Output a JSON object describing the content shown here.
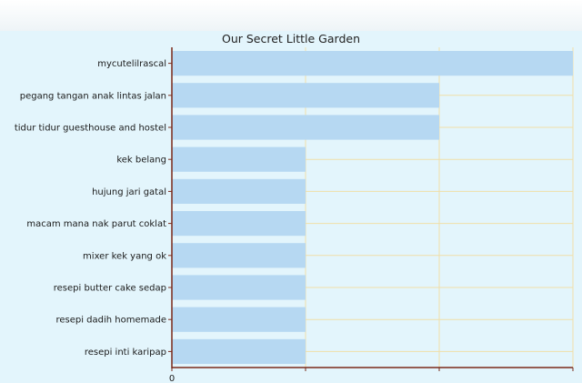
{
  "chart_data": {
    "type": "bar",
    "orientation": "horizontal",
    "title": "Our Secret Little Garden",
    "categories": [
      "mycutelilrascal",
      "pegang tangan anak lintas jalan",
      "tidur tidur guesthouse and hostel",
      "kek belang",
      "hujung jari gatal",
      "macam mana nak parut coklat",
      "mixer kek yang  ok",
      "resepi butter cake sedap",
      "resepi dadih homemade",
      "resepi inti karipap"
    ],
    "values": [
      3,
      2,
      2,
      1,
      1,
      1,
      1,
      1,
      1,
      1
    ],
    "xlim": [
      0,
      3
    ],
    "x_tick_labels": [
      "0"
    ],
    "grid": true,
    "colors": {
      "bar": "#b6d8f2",
      "axis": "#7a2a1a",
      "grid": "#f0dfa8",
      "panel": "#e3f5fc"
    }
  }
}
